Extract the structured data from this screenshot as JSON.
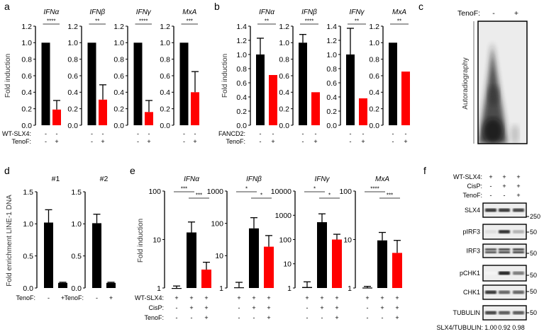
{
  "colors": {
    "control": "#000000",
    "treated": "#ff0000"
  },
  "chart_data": [
    {
      "panel": "a",
      "type": "bar",
      "ylabel": "Fold induction",
      "scale": "linear",
      "conditions": [
        {
          "label": "WT-SLX4:",
          "values": [
            "-",
            "-"
          ]
        },
        {
          "label": "TenoF:",
          "values": [
            "-",
            "+"
          ]
        }
      ],
      "charts": [
        {
          "title": "IFNα",
          "ylim": [
            0,
            1.2
          ],
          "yticks": [
            "0.0",
            "0.2",
            "0.4",
            "0.6",
            "0.8",
            "1.0",
            "1.2"
          ],
          "bars": [
            {
              "value": 1.0,
              "error": 1.0,
              "color": "#000000"
            },
            {
              "value": 0.19,
              "error": 0.3,
              "color": "#ff0000"
            }
          ],
          "significance": [
            {
              "from": 0,
              "to": 1,
              "label": "****"
            }
          ]
        },
        {
          "title": "IFNβ",
          "ylim": [
            0,
            1.2
          ],
          "yticks": [
            "0.0",
            "0.2",
            "0.4",
            "0.6",
            "0.8",
            "1.0",
            "1.2"
          ],
          "bars": [
            {
              "value": 1.0,
              "error": 1.0,
              "color": "#000000"
            },
            {
              "value": 0.31,
              "error": 0.49,
              "color": "#ff0000"
            }
          ],
          "significance": [
            {
              "from": 0,
              "to": 1,
              "label": "**"
            }
          ]
        },
        {
          "title": "IFNγ",
          "ylim": [
            0,
            1.2
          ],
          "yticks": [
            "0.0",
            "0.2",
            "0.4",
            "0.6",
            "0.8",
            "1.0",
            "1.2"
          ],
          "bars": [
            {
              "value": 1.0,
              "error": 1.0,
              "color": "#000000"
            },
            {
              "value": 0.16,
              "error": 0.3,
              "color": "#ff0000"
            }
          ],
          "significance": [
            {
              "from": 0,
              "to": 1,
              "label": "****"
            }
          ]
        },
        {
          "title": "MxA",
          "ylim": [
            0,
            1.2
          ],
          "yticks": [
            "0.0",
            "0.2",
            "0.4",
            "0.6",
            "0.8",
            "1.0",
            "1.2"
          ],
          "bars": [
            {
              "value": 1.0,
              "error": 1.0,
              "color": "#000000"
            },
            {
              "value": 0.4,
              "error": 0.65,
              "color": "#ff0000"
            }
          ],
          "significance": [
            {
              "from": 0,
              "to": 1,
              "label": "***"
            }
          ]
        }
      ]
    },
    {
      "panel": "b",
      "type": "bar",
      "ylabel": "Fold induction",
      "scale": "linear",
      "conditions": [
        {
          "label": "FANCD2:",
          "values": [
            "-",
            "-"
          ]
        },
        {
          "label": "TenoF:",
          "values": [
            "-",
            "+"
          ]
        }
      ],
      "charts": [
        {
          "title": "IFNα",
          "ylim": [
            0,
            1.4
          ],
          "yticks": [
            "0.0",
            "0.2",
            "0.4",
            "0.6",
            "0.8",
            "1.0",
            "1.2",
            "1.4"
          ],
          "bars": [
            {
              "value": 1.0,
              "error": 1.23,
              "color": "#000000"
            },
            {
              "value": 0.71,
              "error": 0.71,
              "color": "#ff0000"
            }
          ],
          "significance": [
            {
              "from": 0,
              "to": 1,
              "label": "**"
            }
          ]
        },
        {
          "title": "IFNβ",
          "ylim": [
            0,
            1.2
          ],
          "yticks": [
            "0.0",
            "0.2",
            "0.4",
            "0.6",
            "0.8",
            "1.0",
            "1.2"
          ],
          "bars": [
            {
              "value": 1.0,
              "error": 1.1,
              "color": "#000000"
            },
            {
              "value": 0.4,
              "error": 0.4,
              "color": "#ff0000"
            }
          ],
          "significance": [
            {
              "from": 0,
              "to": 1,
              "label": "****"
            }
          ]
        },
        {
          "title": "IFNγ",
          "ylim": [
            0,
            1.4
          ],
          "yticks": [
            "0.0",
            "0.2",
            "0.4",
            "0.6",
            "0.8",
            "1.0",
            "1.2",
            "1.4"
          ],
          "bars": [
            {
              "value": 1.0,
              "error": 1.37,
              "color": "#000000"
            },
            {
              "value": 0.38,
              "error": 0.38,
              "color": "#ff0000"
            }
          ],
          "significance": [
            {
              "from": 0,
              "to": 1,
              "label": "**"
            }
          ]
        },
        {
          "title": "MxA",
          "ylim": [
            0,
            1.2
          ],
          "yticks": [
            "0.0",
            "0.2",
            "0.4",
            "0.6",
            "0.8",
            "1.0",
            "1.2"
          ],
          "bars": [
            {
              "value": 1.0,
              "error": 1.0,
              "color": "#000000"
            },
            {
              "value": 0.65,
              "error": 0.65,
              "color": "#ff0000"
            }
          ],
          "significance": [
            {
              "from": 0,
              "to": 1,
              "label": "**"
            }
          ]
        }
      ]
    },
    {
      "panel": "d",
      "type": "bar",
      "ylabel": "Fold enrichment LINE-1 DNA",
      "scale": "linear",
      "conditions": [
        {
          "label": "TenoF:",
          "values": [
            "-",
            "+"
          ]
        }
      ],
      "charts": [
        {
          "title": "#1",
          "ylim": [
            0,
            1.5
          ],
          "yticks": [
            "0.0",
            "0.5",
            "1.0",
            "1.5"
          ],
          "bars": [
            {
              "value": 1.02,
              "error": 1.22,
              "color": "#000000"
            },
            {
              "value": 0.08,
              "error": 0.09,
              "color": "#000000"
            }
          ],
          "significance": []
        },
        {
          "title": "#2",
          "ylim": [
            0,
            1.5
          ],
          "yticks": [
            "0.0",
            "0.5",
            "1.0",
            "1.5"
          ],
          "bars": [
            {
              "value": 1.01,
              "error": 1.15,
              "color": "#000000"
            },
            {
              "value": 0.08,
              "error": 0.09,
              "color": "#000000"
            }
          ],
          "significance": []
        }
      ]
    },
    {
      "panel": "e",
      "type": "bar",
      "ylabel": "Fold induction",
      "scale": "log",
      "conditions": [
        {
          "label": "WT-SLX4:",
          "values": [
            "+",
            "+",
            "+"
          ]
        },
        {
          "label": "CisP:",
          "values": [
            "-",
            "+",
            "+"
          ]
        },
        {
          "label": "TenoF:",
          "values": [
            "-",
            "-",
            "+"
          ]
        }
      ],
      "charts": [
        {
          "title": "IFNα",
          "ylim": [
            1,
            100
          ],
          "yticks": [
            "1",
            "10",
            "100"
          ],
          "bars": [
            {
              "value": 1.0,
              "error": 1.1,
              "color": "#000000"
            },
            {
              "value": 14,
              "error": 23,
              "color": "#000000"
            },
            {
              "value": 2.4,
              "error": 3.4,
              "color": "#ff0000"
            }
          ],
          "significance": [
            {
              "from": 0,
              "to": 1,
              "label": "***"
            },
            {
              "from": 1,
              "to": 2,
              "label": "***"
            }
          ]
        },
        {
          "title": "IFNβ",
          "ylim": [
            1,
            1000
          ],
          "yticks": [
            "1",
            "10",
            "100",
            "1000"
          ],
          "bars": [
            {
              "value": 1.05,
              "error": 1.5,
              "color": "#000000"
            },
            {
              "value": 70,
              "error": 150,
              "color": "#000000"
            },
            {
              "value": 19,
              "error": 42,
              "color": "#ff0000"
            }
          ],
          "significance": [
            {
              "from": 0,
              "to": 1,
              "label": "*"
            },
            {
              "from": 1,
              "to": 2,
              "label": "*"
            }
          ]
        },
        {
          "title": "IFNγ",
          "ylim": [
            1,
            10000
          ],
          "yticks": [
            "1",
            "10",
            "100",
            "1000",
            "10000"
          ],
          "bars": [
            {
              "value": 1.1,
              "error": 1.8,
              "color": "#000000"
            },
            {
              "value": 520,
              "error": 1150,
              "color": "#000000"
            },
            {
              "value": 100,
              "error": 165,
              "color": "#ff0000"
            }
          ],
          "significance": [
            {
              "from": 0,
              "to": 1,
              "label": "*"
            },
            {
              "from": 1,
              "to": 2,
              "label": "*"
            }
          ]
        },
        {
          "title": "MxA",
          "ylim": [
            1,
            100
          ],
          "yticks": [
            "1",
            "10",
            "100"
          ],
          "bars": [
            {
              "value": 1.02,
              "error": 1.08,
              "color": "#000000"
            },
            {
              "value": 9.6,
              "error": 14,
              "color": "#000000"
            },
            {
              "value": 5.3,
              "error": 9.6,
              "color": "#ff0000"
            }
          ],
          "significance": [
            {
              "from": 0,
              "to": 1,
              "label": "****"
            },
            {
              "from": 1,
              "to": 2,
              "label": "***"
            }
          ]
        }
      ]
    }
  ],
  "panel_c": {
    "letter": "c",
    "condition_label": "TenoF:",
    "lanes": [
      "-",
      "+"
    ],
    "side_label": "Autoradiography"
  },
  "panel_f": {
    "letter": "f",
    "conditions": [
      {
        "label": "WT-SLX4:",
        "values": [
          "+",
          "+",
          "+"
        ]
      },
      {
        "label": "CisP:",
        "values": [
          "-",
          "+",
          "+"
        ]
      },
      {
        "label": "TenoF:",
        "values": [
          "-",
          "-",
          "+"
        ]
      }
    ],
    "blots": [
      {
        "label": "SLX4",
        "marker": "250",
        "intensity": [
          0.9,
          0.9,
          0.85
        ]
      },
      {
        "label": "pIRF3",
        "marker": "50",
        "intensity": [
          0.15,
          0.95,
          0.35
        ]
      },
      {
        "label": "IRF3",
        "marker": "50",
        "intensity": [
          0.85,
          0.9,
          0.9
        ]
      },
      {
        "label": "pCHK1",
        "marker": "50",
        "intensity": [
          0.05,
          1.0,
          0.6
        ]
      },
      {
        "label": "CHK1",
        "marker": "50",
        "intensity": [
          0.9,
          0.7,
          0.7
        ]
      },
      {
        "label": "TUBULIN",
        "marker": "50",
        "intensity": [
          0.85,
          0.75,
          0.75
        ]
      }
    ],
    "ratio_label": "SLX4/TUBULIN:",
    "ratios": [
      "1.00",
      "0.92",
      "0.98"
    ]
  },
  "letters": {
    "a": "a",
    "b": "b",
    "d": "d",
    "e": "e"
  }
}
